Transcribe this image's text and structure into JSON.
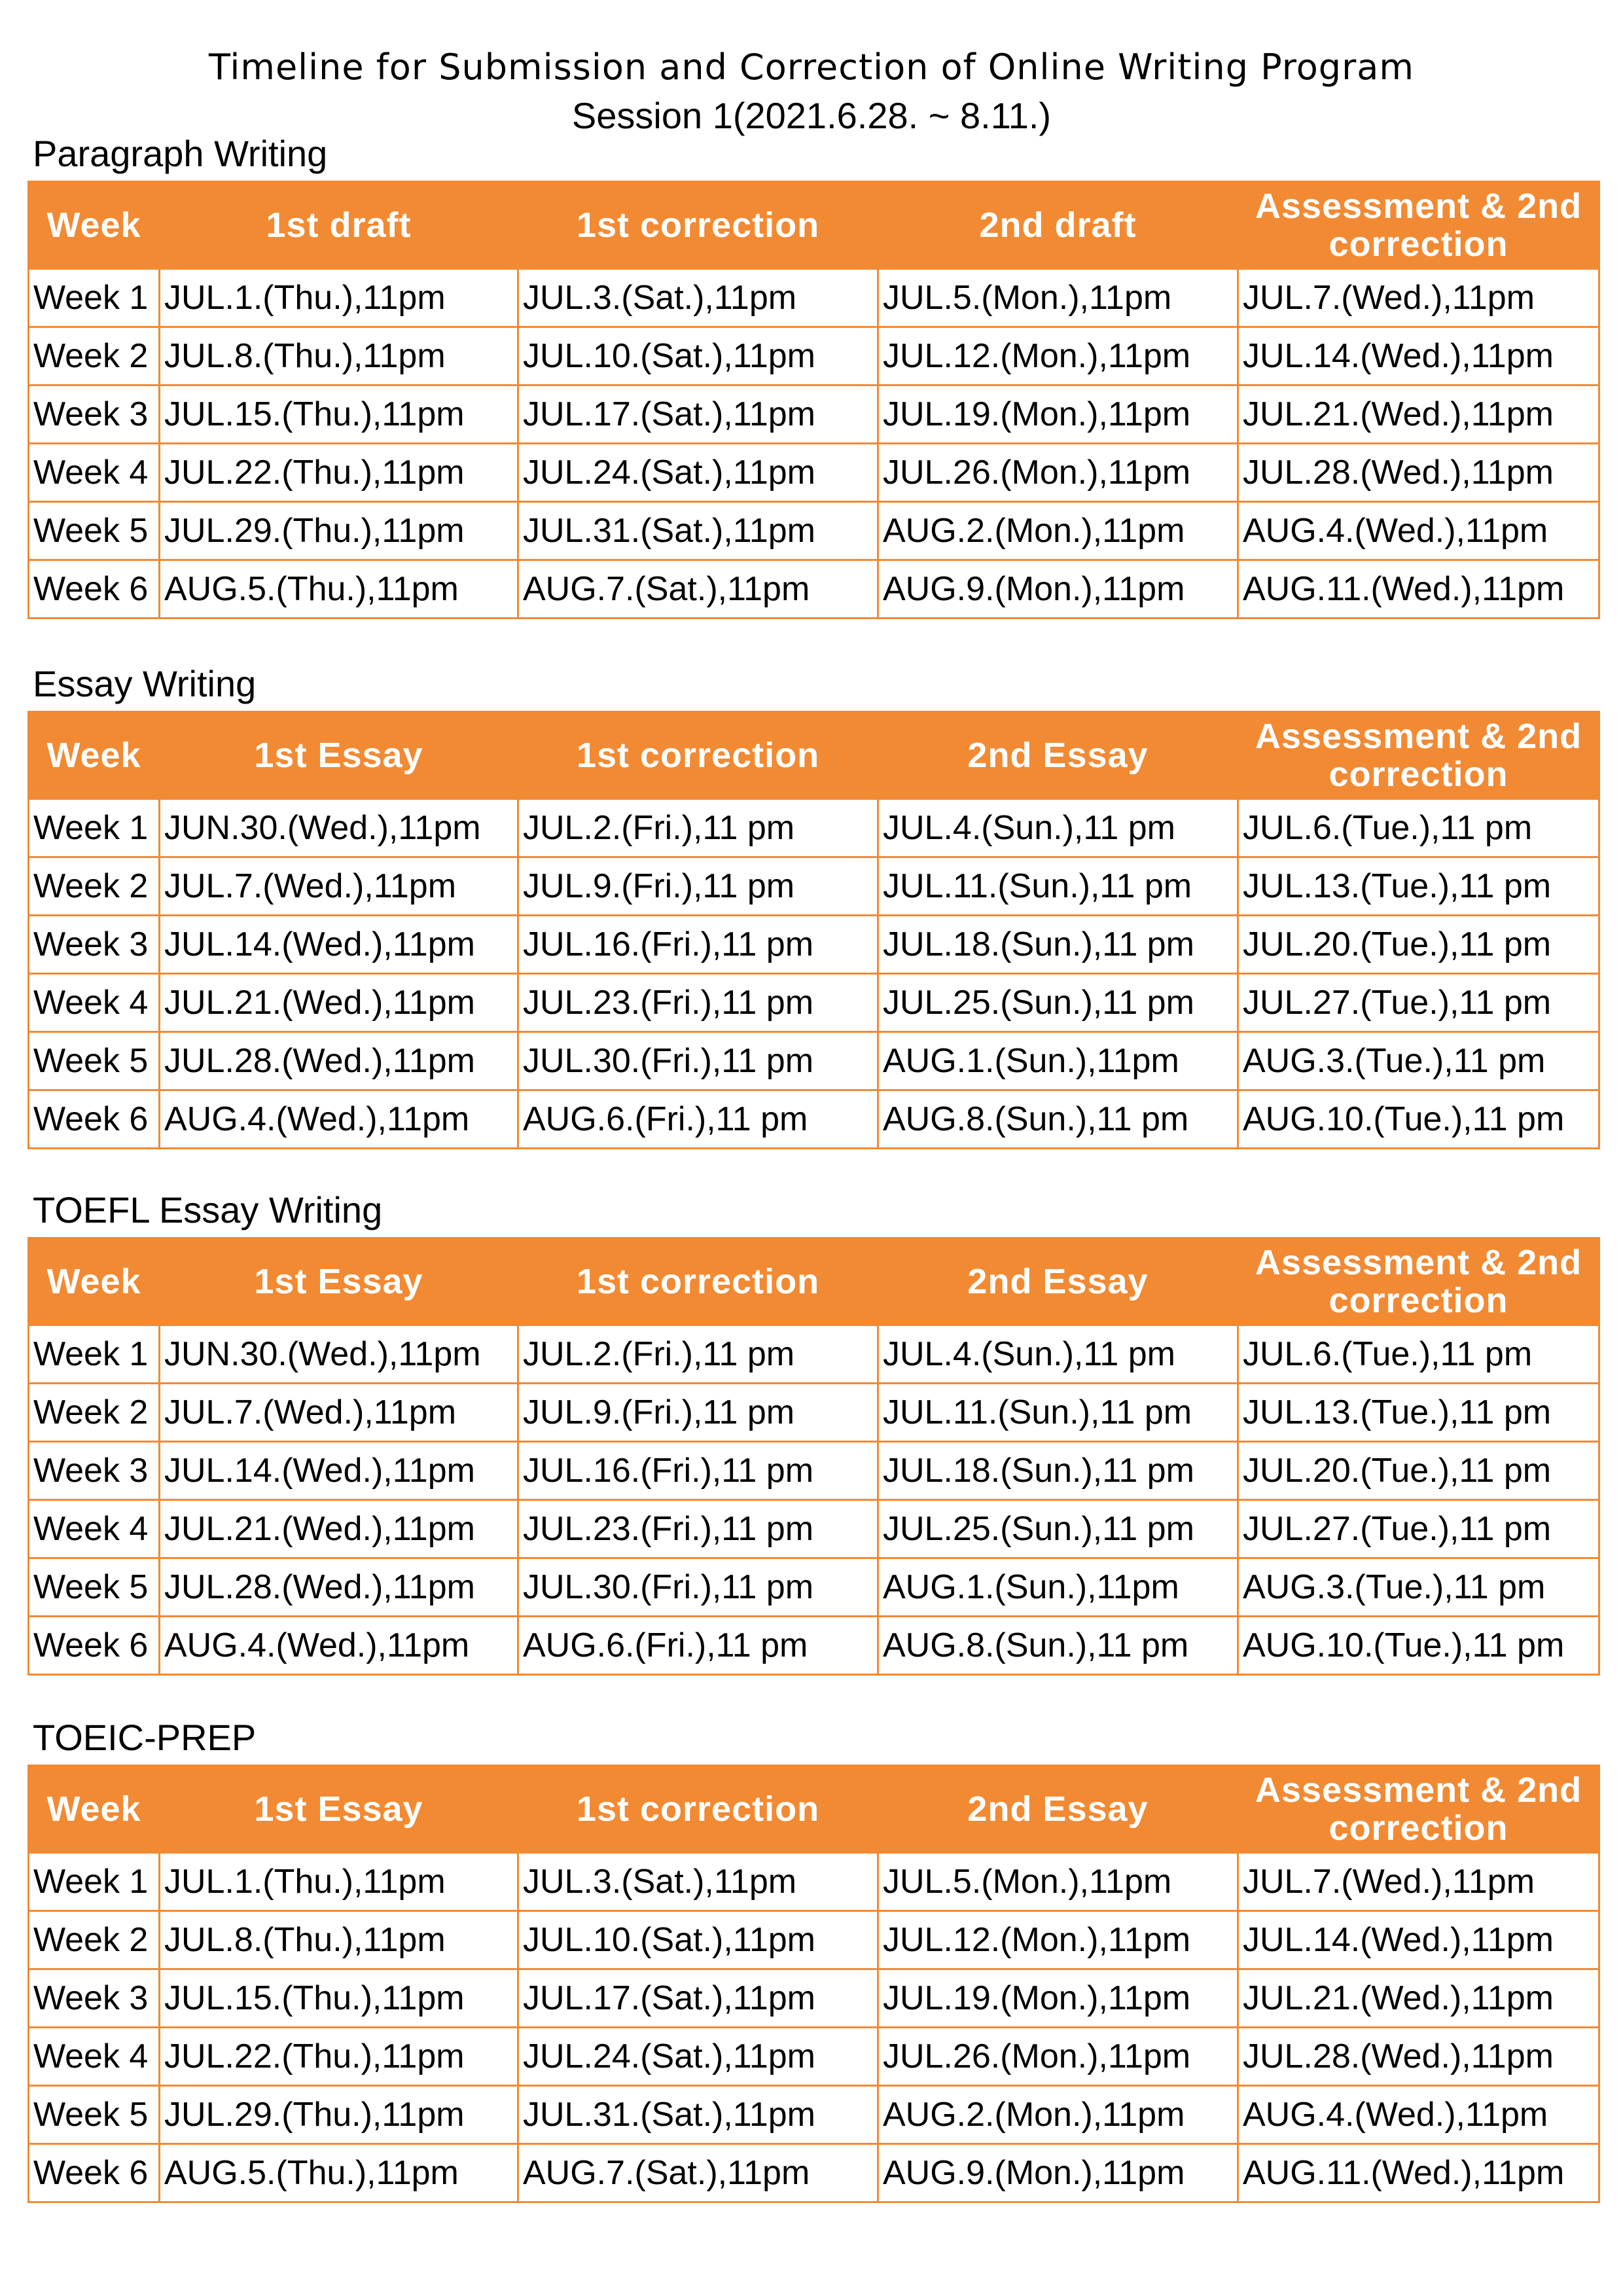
{
  "title": "Timeline for Submission and Correction of Online Writing Program",
  "subtitle": "Session 1(2021.6.28. ~ 8.11.)",
  "sections": [
    {
      "title": "Paragraph Writing",
      "headers": [
        "Week",
        "1st draft",
        "1st correction",
        "2nd draft",
        "Assessment & 2nd correction"
      ],
      "rows": [
        [
          "Week 1",
          "JUL.1.(Thu.),11pm",
          "JUL.3.(Sat.),11pm",
          "JUL.5.(Mon.),11pm",
          "JUL.7.(Wed.),11pm"
        ],
        [
          "Week 2",
          "JUL.8.(Thu.),11pm",
          "JUL.10.(Sat.),11pm",
          "JUL.12.(Mon.),11pm",
          "JUL.14.(Wed.),11pm"
        ],
        [
          "Week 3",
          "JUL.15.(Thu.),11pm",
          "JUL.17.(Sat.),11pm",
          "JUL.19.(Mon.),11pm",
          "JUL.21.(Wed.),11pm"
        ],
        [
          "Week 4",
          "JUL.22.(Thu.),11pm",
          "JUL.24.(Sat.),11pm",
          "JUL.26.(Mon.),11pm",
          "JUL.28.(Wed.),11pm"
        ],
        [
          "Week 5",
          "JUL.29.(Thu.),11pm",
          "JUL.31.(Sat.),11pm",
          "AUG.2.(Mon.),11pm",
          "AUG.4.(Wed.),11pm"
        ],
        [
          "Week 6",
          "AUG.5.(Thu.),11pm",
          "AUG.7.(Sat.),11pm",
          "AUG.9.(Mon.),11pm",
          "AUG.11.(Wed.),11pm"
        ]
      ]
    },
    {
      "title": "Essay Writing",
      "headers": [
        "Week",
        "1st Essay",
        "1st correction",
        "2nd Essay",
        "Assessment & 2nd correction"
      ],
      "rows": [
        [
          "Week 1",
          "JUN.30.(Wed.),11pm",
          "JUL.2.(Fri.),11 pm",
          "JUL.4.(Sun.),11 pm",
          "JUL.6.(Tue.),11 pm"
        ],
        [
          "Week 2",
          "JUL.7.(Wed.),11pm",
          "JUL.9.(Fri.),11 pm",
          "JUL.11.(Sun.),11 pm",
          "JUL.13.(Tue.),11 pm"
        ],
        [
          "Week 3",
          "JUL.14.(Wed.),11pm",
          "JUL.16.(Fri.),11 pm",
          "JUL.18.(Sun.),11 pm",
          "JUL.20.(Tue.),11 pm"
        ],
        [
          "Week 4",
          "JUL.21.(Wed.),11pm",
          "JUL.23.(Fri.),11 pm",
          "JUL.25.(Sun.),11 pm",
          "JUL.27.(Tue.),11 pm"
        ],
        [
          "Week 5",
          "JUL.28.(Wed.),11pm",
          "JUL.30.(Fri.),11 pm",
          "AUG.1.(Sun.),11pm",
          "AUG.3.(Tue.),11 pm"
        ],
        [
          "Week 6",
          "AUG.4.(Wed.),11pm",
          "AUG.6.(Fri.),11 pm",
          "AUG.8.(Sun.),11 pm",
          "AUG.10.(Tue.),11 pm"
        ]
      ]
    },
    {
      "title": "TOEFL Essay Writing",
      "headers": [
        "Week",
        "1st Essay",
        "1st correction",
        "2nd Essay",
        "Assessment & 2nd correction"
      ],
      "rows": [
        [
          "Week 1",
          "JUN.30.(Wed.),11pm",
          "JUL.2.(Fri.),11 pm",
          "JUL.4.(Sun.),11 pm",
          "JUL.6.(Tue.),11 pm"
        ],
        [
          "Week 2",
          "JUL.7.(Wed.),11pm",
          "JUL.9.(Fri.),11 pm",
          "JUL.11.(Sun.),11 pm",
          "JUL.13.(Tue.),11 pm"
        ],
        [
          "Week 3",
          "JUL.14.(Wed.),11pm",
          "JUL.16.(Fri.),11 pm",
          "JUL.18.(Sun.),11 pm",
          "JUL.20.(Tue.),11 pm"
        ],
        [
          "Week 4",
          "JUL.21.(Wed.),11pm",
          "JUL.23.(Fri.),11 pm",
          "JUL.25.(Sun.),11 pm",
          "JUL.27.(Tue.),11 pm"
        ],
        [
          "Week 5",
          "JUL.28.(Wed.),11pm",
          "JUL.30.(Fri.),11 pm",
          "AUG.1.(Sun.),11pm",
          "AUG.3.(Tue.),11 pm"
        ],
        [
          "Week 6",
          "AUG.4.(Wed.),11pm",
          "AUG.6.(Fri.),11 pm",
          "AUG.8.(Sun.),11 pm",
          "AUG.10.(Tue.),11 pm"
        ]
      ]
    },
    {
      "title": "TOEIC-PREP",
      "headers": [
        "Week",
        "1st Essay",
        "1st correction",
        "2nd Essay",
        "Assessment & 2nd correction"
      ],
      "rows": [
        [
          "Week 1",
          "JUL.1.(Thu.),11pm",
          "JUL.3.(Sat.),11pm",
          "JUL.5.(Mon.),11pm",
          "JUL.7.(Wed.),11pm"
        ],
        [
          "Week 2",
          "JUL.8.(Thu.),11pm",
          "JUL.10.(Sat.),11pm",
          "JUL.12.(Mon.),11pm",
          "JUL.14.(Wed.),11pm"
        ],
        [
          "Week 3",
          "JUL.15.(Thu.),11pm",
          "JUL.17.(Sat.),11pm",
          "JUL.19.(Mon.),11pm",
          "JUL.21.(Wed.),11pm"
        ],
        [
          "Week 4",
          "JUL.22.(Thu.),11pm",
          "JUL.24.(Sat.),11pm",
          "JUL.26.(Mon.),11pm",
          "JUL.28.(Wed.),11pm"
        ],
        [
          "Week 5",
          "JUL.29.(Thu.),11pm",
          "JUL.31.(Sat.),11pm",
          "AUG.2.(Mon.),11pm",
          "AUG.4.(Wed.),11pm"
        ],
        [
          "Week 6",
          "AUG.5.(Thu.),11pm",
          "AUG.7.(Sat.),11pm",
          "AUG.9.(Mon.),11pm",
          "AUG.11.(Wed.),11pm"
        ]
      ]
    }
  ]
}
